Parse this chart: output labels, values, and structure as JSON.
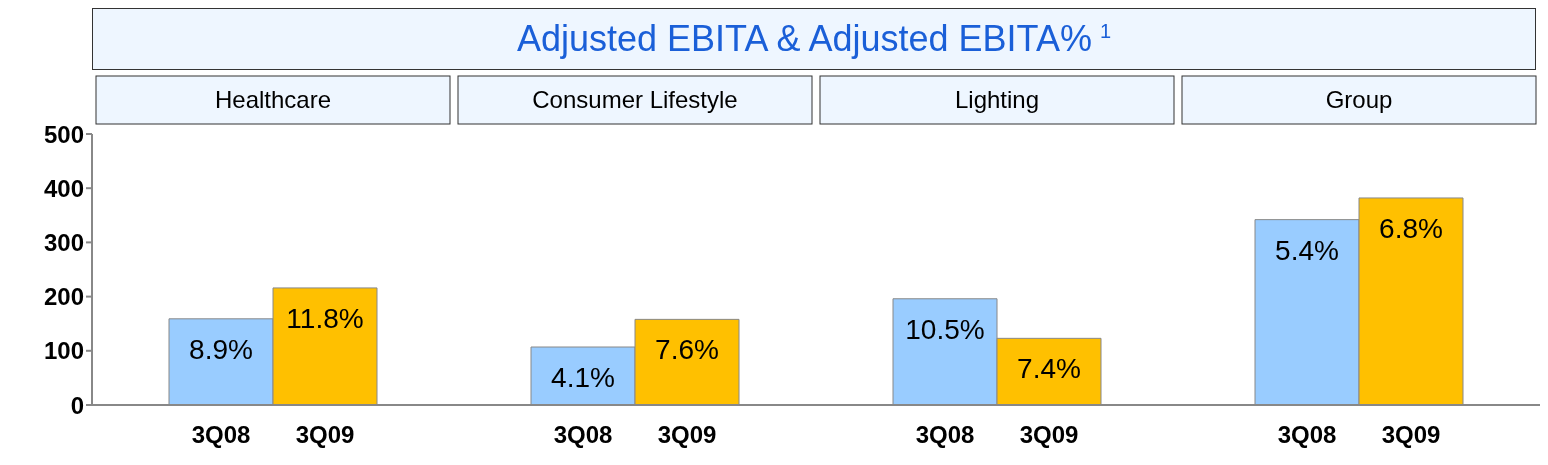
{
  "chart_data": {
    "type": "bar",
    "title": "Adjusted EBITA & Adjusted EBITA%$^{1}$",
    "categories": [
      "Healthcare",
      "Consumer Lifestyle",
      "Lighting",
      "Group"
    ],
    "series": [
      {
        "name": "3Q08",
        "color": "#99ccff",
        "values": [
          159,
          107,
          196,
          342
        ]
      },
      {
        "name": "3Q09",
        "color": "#ffc000",
        "values": [
          216,
          158,
          123,
          382
        ]
      }
    ],
    "annotations": [
      {
        "text": "8.9%",
        "x": "Healthcare",
        "y": 159
      },
      {
        "text": "11.8%",
        "x": "Healthcare",
        "y": 216
      },
      {
        "text": "4.1%",
        "x": "Consumer Lifestyle",
        "y": 107
      },
      {
        "text": "7.6%",
        "x": "Consumer Lifestyle",
        "y": 158
      },
      {
        "text": "10.5%",
        "x": "Lighting",
        "y": 196
      },
      {
        "text": "7.4%",
        "x": "Lighting",
        "y": 123
      },
      {
        "text": "5.4%",
        "x": "Group",
        "y": 342
      },
      {
        "text": "6.8%",
        "x": "Group",
        "y": 382
      }
    ],
    "ylim": [
      0,
      500
    ],
    "yticks": [
      0,
      100,
      200,
      300,
      400,
      500
    ],
    "grid": false,
    "legend": false
  }
}
